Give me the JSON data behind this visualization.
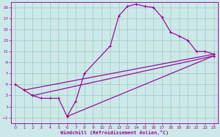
{
  "bg_color": "#cce8e8",
  "line_color": "#990099",
  "grid_color": "#99ccbb",
  "xlabel": "Windchill (Refroidissement éolien,°C)",
  "xlabel_color": "#990099",
  "xlim": [
    -0.5,
    23.5
  ],
  "ylim": [
    -2,
    20
  ],
  "xticks": [
    0,
    1,
    2,
    3,
    4,
    5,
    6,
    7,
    8,
    9,
    10,
    11,
    12,
    13,
    14,
    15,
    16,
    17,
    18,
    19,
    20,
    21,
    22,
    23
  ],
  "yticks": [
    -1,
    1,
    3,
    5,
    7,
    9,
    11,
    13,
    15,
    17,
    19
  ],
  "main_x": [
    0,
    1,
    2,
    3,
    4,
    5,
    6,
    7,
    8,
    11,
    12,
    13,
    14,
    15,
    16,
    17,
    18,
    19,
    20,
    21,
    22,
    23
  ],
  "main_y": [
    5,
    4,
    3,
    2.5,
    2.5,
    2.5,
    -0.8,
    2,
    7,
    12,
    17.5,
    19.2,
    19.6,
    19.2,
    19,
    17.2,
    14.5,
    13.8,
    13,
    11,
    11,
    10.5
  ],
  "line1_x": [
    1,
    23
  ],
  "line1_y": [
    4,
    10.5
  ],
  "line2_x": [
    2,
    23
  ],
  "line2_y": [
    3,
    10.2
  ],
  "line3_x": [
    6,
    23
  ],
  "line3_y": [
    -0.8,
    10.2
  ],
  "line4_x": [
    0,
    23
  ],
  "line4_y": [
    5,
    10.5
  ]
}
